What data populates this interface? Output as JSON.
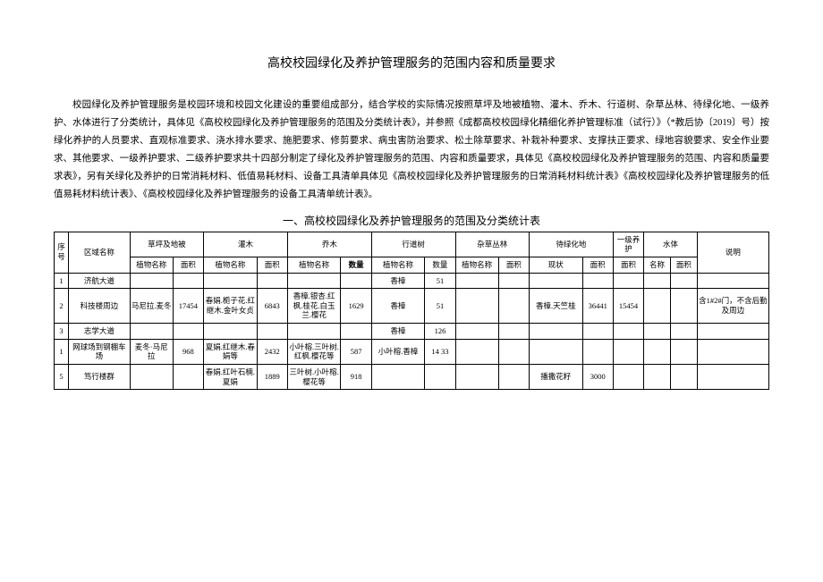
{
  "title": "高校校园绿化及养护管理服务的范围内容和质量要求",
  "paragraph": "校园绿化及养护管理服务是校园环境和校园文化建设的重要组成部分，结合学校的实际情况按照草坪及地被植物、灌木、乔木、行道树、杂草丛林、待绿化地、一级养护、水体进行了分类统计，具体见《高校校园绿化及养护管理服务的范围及分类统计表》，并参照《成都高校校园绿化精细化养护管理标准（试行）》（*教后协〔2019〕号）按绿化养护的人员要求、直观标准要求、浇水排水要求、施肥要求、修剪要求、病虫害防治要求、松土除草要求、补栽补种要求、支撑扶正要求、绿地容貌要求、安全作业要求、其他要求、一级养护要求、二级养护要求共十四部分制定了绿化及养护管理服务的范围、内容和质量要求，具体见《高校校园绿化及养护管理服务的范围、内容和质量要求表》，另有关绿化及养护的日常消耗材料、低值易耗材料、设备工具清单具体见《高校校园绿化及养护管理服务的日常消耗材料统计表》《高校校园绿化及养护管理服务的低值易耗材料统计表》、《高校校园绿化及养护管理服务的设备工具清单统计表》。",
  "table_title": "一、高校校园绿化及养护管理服务的范围及分类统计表",
  "headers": {
    "seq": "序号",
    "area": "区域名称",
    "grass": "草坪及地被",
    "shrub": "灌木",
    "tree": "乔木",
    "avenue": "行道树",
    "weed": "杂草丛林",
    "togreen": "待绿化地",
    "level1": "一级养护",
    "water": "水体",
    "desc": "说明",
    "plant": "植物名称",
    "areaval": "面积",
    "qty": "数量",
    "qty_bold": "数量",
    "status": "现状",
    "name": "名称"
  },
  "rows": [
    {
      "seq": "1",
      "area": "济航大道",
      "grass_p": "",
      "grass_a": "",
      "shrub_p": "",
      "shrub_a": "",
      "tree_p": "",
      "tree_q": "",
      "ave_p": "香樟",
      "ave_q": "51",
      "weed_p": "",
      "weed_a": "",
      "tg_s": "",
      "tg_a": "",
      "l1_a": "",
      "w_n": "",
      "w_a": "",
      "desc": ""
    },
    {
      "seq": "2",
      "area": "科技楼周边",
      "grass_p": "马尼拉.麦冬",
      "grass_a": "17454",
      "shrub_p": "春娟.栀子花.红继木.金叶女贞",
      "shrub_a": "6843",
      "tree_p": "香樟.银杏.红枫.桂花.白玉兰.樱花",
      "tree_q": "1629",
      "ave_p": "香樟",
      "ave_q": "51",
      "weed_p": "",
      "weed_a": "",
      "tg_s": "香樟.天竺桂",
      "tg_a": "36441",
      "l1_a": "15454",
      "w_n": "",
      "w_a": "",
      "desc": "含1#2#门，不含后勤及周边"
    },
    {
      "seq": "3",
      "area": "志学大道",
      "grass_p": "",
      "grass_a": "",
      "shrub_p": "",
      "shrub_a": "",
      "tree_p": "",
      "tree_q": "",
      "ave_p": "香樟",
      "ave_q": "126",
      "weed_p": "",
      "weed_a": "",
      "tg_s": "",
      "tg_a": "",
      "l1_a": "",
      "w_n": "",
      "w_a": "",
      "desc": ""
    },
    {
      "seq": "1",
      "area": "网球场到钢棚车场",
      "grass_p": "麦冬·马尼拉",
      "grass_a": "968",
      "shrub_p": "夏娟.红继木.春娟等",
      "shrub_a": "2432",
      "tree_p": "小叶榕.三叶树.红枫.樱花等",
      "tree_q": "587",
      "ave_p": "小叶榕.香樟",
      "ave_q": "14 33",
      "weed_p": "",
      "weed_a": "",
      "tg_s": "",
      "tg_a": "",
      "l1_a": "",
      "w_n": "",
      "w_a": "",
      "desc": ""
    },
    {
      "seq": "5",
      "area": "笃行楼群",
      "grass_p": "",
      "grass_a": "",
      "shrub_p": "春娟.红叶石楠.夏娟",
      "shrub_a": "1889",
      "tree_p": "三叶树.小叶榕.樱花等",
      "tree_q": "918",
      "ave_p": "",
      "ave_q": "",
      "weed_p": "",
      "weed_a": "",
      "tg_s": "播撒花籽",
      "tg_a": "3000",
      "l1_a": "",
      "w_n": "",
      "w_a": "",
      "desc": ""
    }
  ]
}
